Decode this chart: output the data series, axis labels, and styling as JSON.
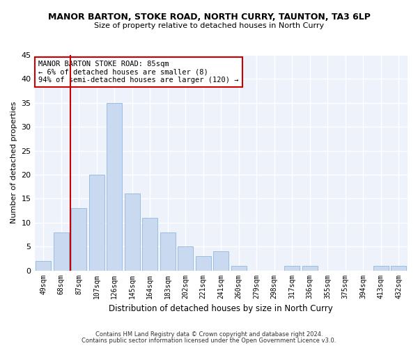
{
  "title": "MANOR BARTON, STOKE ROAD, NORTH CURRY, TAUNTON, TA3 6LP",
  "subtitle": "Size of property relative to detached houses in North Curry",
  "xlabel": "Distribution of detached houses by size in North Curry",
  "ylabel": "Number of detached properties",
  "bar_color": "#c9d9f0",
  "bar_edge_color": "#9bbde0",
  "background_color": "#eef2fa",
  "grid_color": "#ffffff",
  "categories": [
    "49sqm",
    "68sqm",
    "87sqm",
    "107sqm",
    "126sqm",
    "145sqm",
    "164sqm",
    "183sqm",
    "202sqm",
    "221sqm",
    "241sqm",
    "260sqm",
    "279sqm",
    "298sqm",
    "317sqm",
    "336sqm",
    "355sqm",
    "375sqm",
    "394sqm",
    "413sqm",
    "432sqm"
  ],
  "values": [
    2,
    8,
    13,
    20,
    35,
    16,
    11,
    8,
    5,
    3,
    4,
    1,
    0,
    0,
    1,
    1,
    0,
    0,
    0,
    1,
    1
  ],
  "ylim": [
    0,
    45
  ],
  "yticks": [
    0,
    5,
    10,
    15,
    20,
    25,
    30,
    35,
    40,
    45
  ],
  "property_line_x": 1.5,
  "annotation_text": "MANOR BARTON STOKE ROAD: 85sqm\n← 6% of detached houses are smaller (8)\n94% of semi-detached houses are larger (120) →",
  "annotation_box_color": "#ffffff",
  "annotation_box_edge": "#cc0000",
  "vline_color": "#cc0000",
  "footer1": "Contains HM Land Registry data © Crown copyright and database right 2024.",
  "footer2": "Contains public sector information licensed under the Open Government Licence v3.0."
}
